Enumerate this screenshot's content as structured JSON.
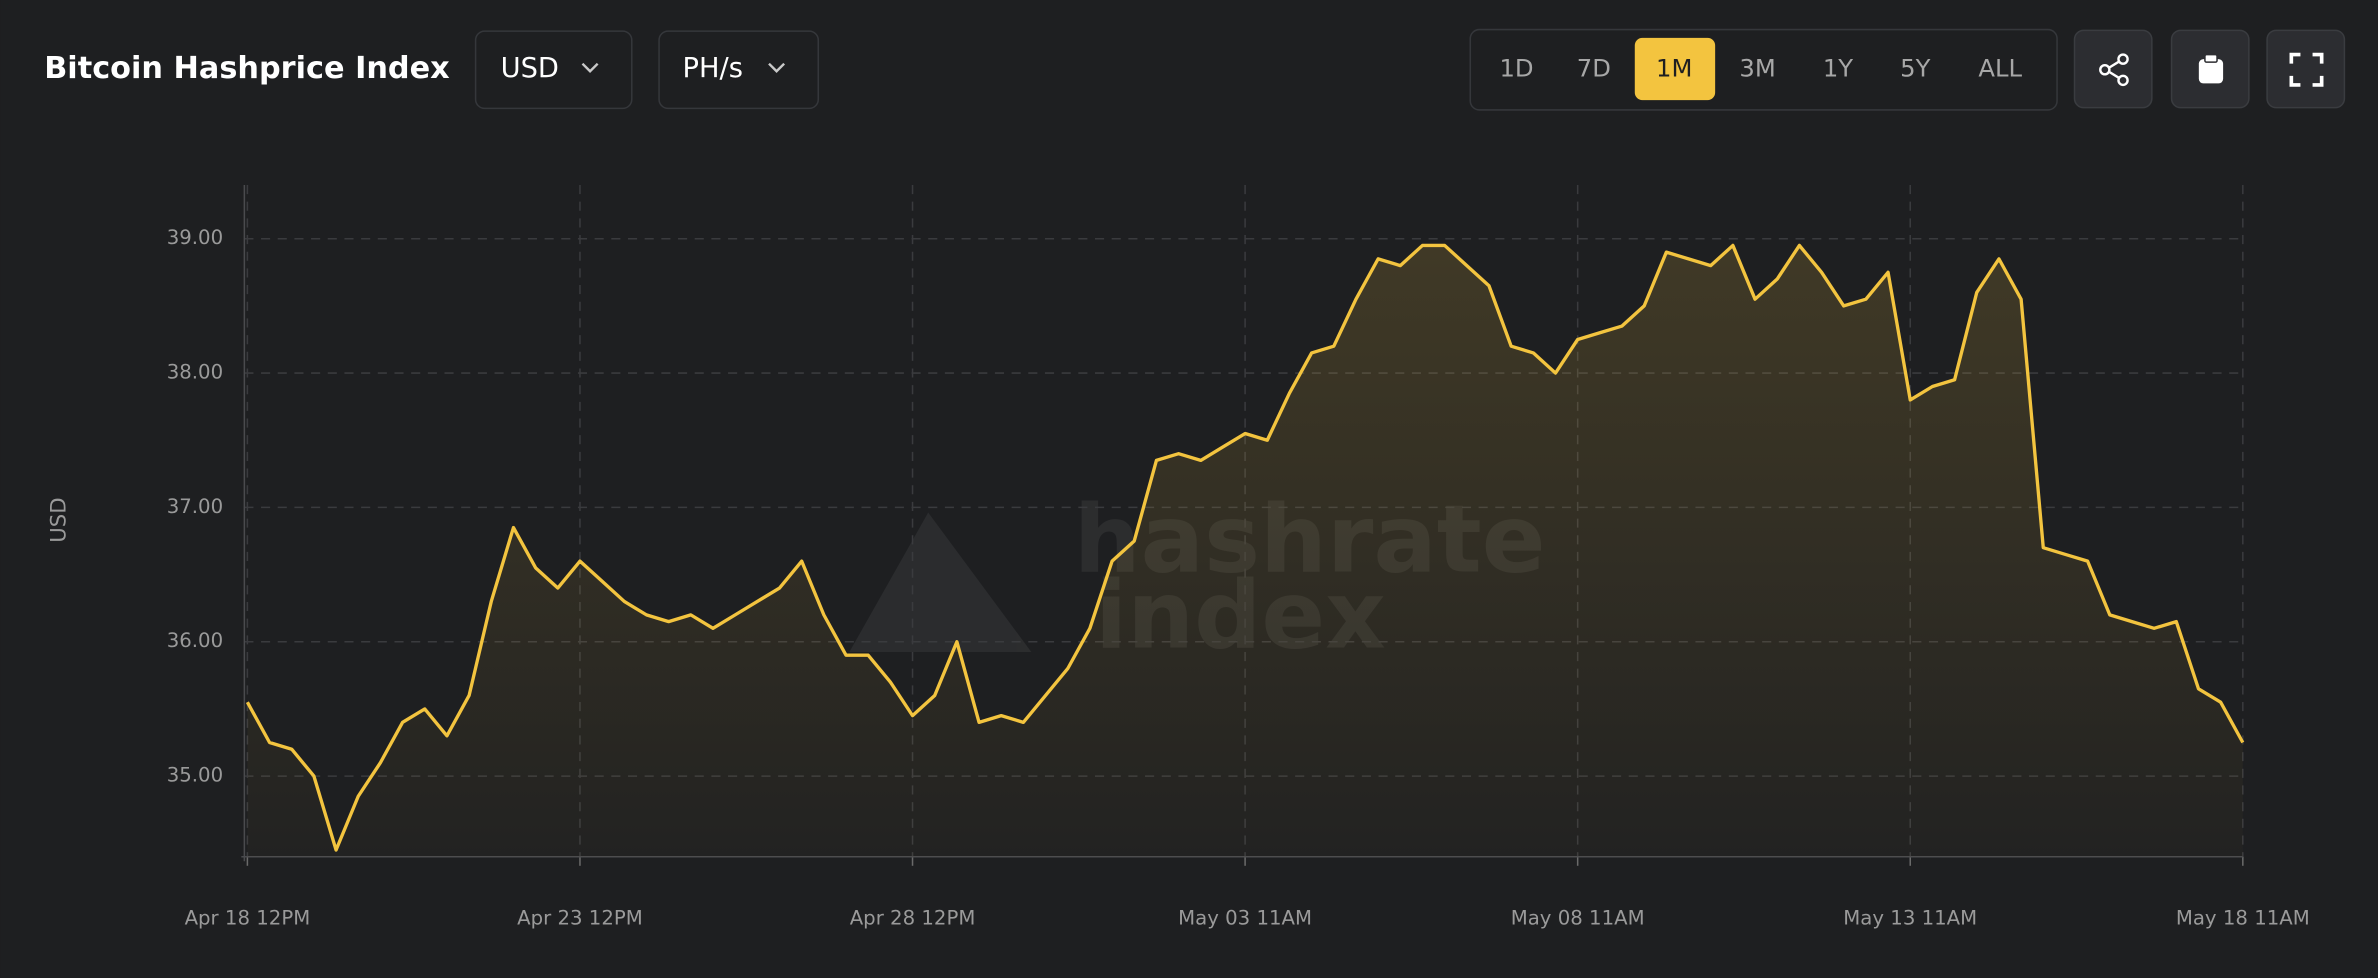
{
  "header": {
    "title": "Bitcoin Hashprice Index",
    "currency": "USD",
    "unit": "PH/s",
    "ranges": [
      "1D",
      "7D",
      "1M",
      "3M",
      "1Y",
      "5Y",
      "ALL"
    ],
    "active_range": "1M"
  },
  "chart_data": {
    "type": "line",
    "y_label": "USD",
    "watermark": [
      "hashrate",
      "index"
    ],
    "color": "#f3c43f",
    "grid": true,
    "x": [
      "Apr 18 12PM",
      "Apr 18 8PM",
      "Apr 19 4AM",
      "Apr 19 12PM",
      "Apr 19 8PM",
      "Apr 20 4AM",
      "Apr 20 12PM",
      "Apr 20 8PM",
      "Apr 21 4AM",
      "Apr 21 12PM",
      "Apr 21 8PM",
      "Apr 22 4AM",
      "Apr 22 12PM",
      "Apr 22 8PM",
      "Apr 23 4AM",
      "Apr 23 12PM",
      "Apr 23 8PM",
      "Apr 24 4AM",
      "Apr 24 12PM",
      "Apr 24 8PM",
      "Apr 25 4AM",
      "Apr 25 12PM",
      "Apr 25 8PM",
      "Apr 26 4AM",
      "Apr 26 12PM",
      "Apr 26 8PM",
      "Apr 27 4AM",
      "Apr 27 12PM",
      "Apr 27 8PM",
      "Apr 28 4AM",
      "Apr 28 12PM",
      "Apr 28 8PM",
      "Apr 29 4AM",
      "Apr 29 12PM",
      "Apr 29 8PM",
      "Apr 30 4AM",
      "Apr 30 12PM",
      "Apr 30 8PM",
      "May 01 4AM",
      "May 01 12PM",
      "May 01 8PM",
      "May 02 4AM",
      "May 02 12PM",
      "May 02 8PM",
      "May 03 4AM",
      "May 03 11AM",
      "May 03 7PM",
      "May 04 3AM",
      "May 04 11AM",
      "May 04 7PM",
      "May 05 3AM",
      "May 05 11AM",
      "May 05 7PM",
      "May 06 3AM",
      "May 06 11AM",
      "May 06 7PM",
      "May 07 3AM",
      "May 07 11AM",
      "May 07 7PM",
      "May 08 3AM",
      "May 08 11AM",
      "May 08 7PM",
      "May 09 3AM",
      "May 09 11AM",
      "May 09 7PM",
      "May 10 3AM",
      "May 10 11AM",
      "May 10 7PM",
      "May 11 3AM",
      "May 11 11AM",
      "May 11 7PM",
      "May 12 3AM",
      "May 12 11AM",
      "May 12 7PM",
      "May 13 3AM",
      "May 13 11AM",
      "May 13 7PM",
      "May 14 3AM",
      "May 14 11AM",
      "May 14 7PM",
      "May 15 3AM",
      "May 15 11AM",
      "May 15 7PM",
      "May 16 3AM",
      "May 16 11AM",
      "May 16 7PM",
      "May 17 3AM",
      "May 17 11AM",
      "May 17 7PM",
      "May 18 3AM",
      "May 18 11AM"
    ],
    "values": [
      35.55,
      35.25,
      35.2,
      35.0,
      34.45,
      34.85,
      35.1,
      35.4,
      35.5,
      35.3,
      35.6,
      36.3,
      36.85,
      36.55,
      36.4,
      36.6,
      36.45,
      36.3,
      36.2,
      36.15,
      36.2,
      36.1,
      36.2,
      36.3,
      36.4,
      36.6,
      36.2,
      35.9,
      35.9,
      35.7,
      35.45,
      35.6,
      36.0,
      35.4,
      35.45,
      35.4,
      35.6,
      35.8,
      36.1,
      36.6,
      36.75,
      37.35,
      37.4,
      37.35,
      37.45,
      37.55,
      37.5,
      37.85,
      38.15,
      38.2,
      38.55,
      38.85,
      38.8,
      38.95,
      38.95,
      38.8,
      38.65,
      38.2,
      38.15,
      38.0,
      38.25,
      38.3,
      38.35,
      38.5,
      38.9,
      38.85,
      38.8,
      38.95,
      38.55,
      38.7,
      38.95,
      38.75,
      38.5,
      38.55,
      38.75,
      37.8,
      37.9,
      37.95,
      38.6,
      38.85,
      38.55,
      36.7,
      36.65,
      36.6,
      36.2,
      36.15,
      36.1,
      36.15,
      35.65,
      35.55,
      35.25
    ],
    "xticks": [
      "Apr 18 12PM",
      "Apr 23 12PM",
      "Apr 28 12PM",
      "May 03 11AM",
      "May 08 11AM",
      "May 13 11AM",
      "May 18 11AM"
    ],
    "ylim": [
      34.4,
      39.4
    ],
    "yticks": [
      {
        "value": 35,
        "label": "35.00"
      },
      {
        "value": 36,
        "label": "36.00"
      },
      {
        "value": 37,
        "label": "37.00"
      },
      {
        "value": 38,
        "label": "38.00"
      },
      {
        "value": 39,
        "label": "39.00"
      }
    ]
  }
}
